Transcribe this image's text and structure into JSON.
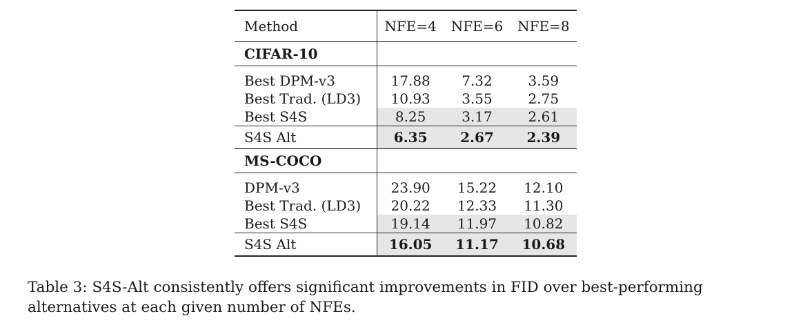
{
  "table": {
    "header": {
      "method": "Method",
      "cols": [
        "NFE=4",
        "NFE=6",
        "NFE=8"
      ]
    },
    "sections": [
      {
        "name": "CIFAR-10",
        "rows": [
          {
            "method": "Best DPM-v3",
            "values": [
              "17.88",
              "7.32",
              "3.59"
            ]
          },
          {
            "method": "Best Trad. (LD3)",
            "values": [
              "10.93",
              "3.55",
              "2.75"
            ]
          },
          {
            "method": "Best S4S",
            "values": [
              "8.25",
              "3.17",
              "2.61"
            ]
          }
        ],
        "alt": {
          "method": "S4S Alt",
          "values": [
            "6.35",
            "2.67",
            "2.39"
          ]
        }
      },
      {
        "name": "MS-COCO",
        "rows": [
          {
            "method": "DPM-v3",
            "values": [
              "23.90",
              "15.22",
              "12.10"
            ]
          },
          {
            "method": "Best Trad. (LD3)",
            "values": [
              "20.22",
              "12.33",
              "11.30"
            ]
          },
          {
            "method": "Best S4S",
            "values": [
              "19.14",
              "11.97",
              "10.82"
            ]
          }
        ],
        "alt": {
          "method": "S4S Alt",
          "values": [
            "16.05",
            "11.17",
            "10.68"
          ]
        }
      }
    ]
  },
  "caption": "Table 3: S4S-Alt consistently offers significant improvements in FID over best-performing alternatives at each given number of NFEs."
}
